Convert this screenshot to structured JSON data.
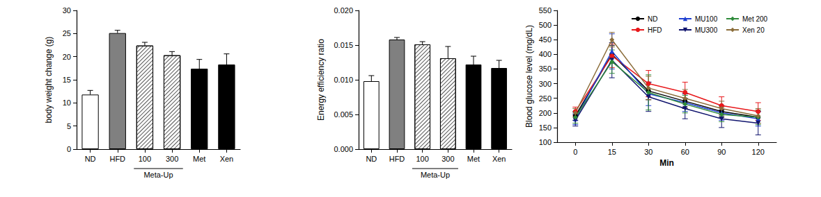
{
  "chart_data": [
    {
      "type": "bar",
      "y_label": "body weight change (g)",
      "categories": [
        "ND",
        "HFD",
        "100",
        "300",
        "Met",
        "Xen"
      ],
      "values": [
        11.8,
        25.1,
        22.4,
        20.3,
        17.4,
        18.3
      ],
      "errors": [
        0.9,
        0.6,
        0.7,
        0.8,
        2.0,
        2.3
      ],
      "colors": [
        "#ffffff",
        "#808080",
        "#ffffff",
        "#ffffff",
        "#000000",
        "#000000"
      ],
      "ylim": [
        0,
        30
      ],
      "yticks": [
        0,
        5,
        10,
        15,
        20,
        25,
        30
      ],
      "grid": false,
      "annotations": [
        {
          "text": "Meta-Up",
          "categories": [
            "100",
            "300"
          ]
        }
      ]
    },
    {
      "type": "bar",
      "y_label": "Energy efficiency ratio",
      "categories": [
        "ND",
        "HFD",
        "100",
        "300",
        "Met",
        "Xen"
      ],
      "values": [
        0.0098,
        0.0158,
        0.0151,
        0.0131,
        0.0122,
        0.0117
      ],
      "errors": [
        0.0008,
        0.0003,
        0.0004,
        0.0017,
        0.0012,
        0.0011
      ],
      "colors": [
        "#ffffff",
        "#808080",
        "#ffffff",
        "#ffffff",
        "#000000",
        "#000000"
      ],
      "ylim": [
        0,
        0.02
      ],
      "yticks": [
        {
          "value": 0,
          "label": "0.000"
        },
        {
          "value": 0.005,
          "label": "0.005"
        },
        {
          "value": 0.01,
          "label": "0.010"
        },
        {
          "value": 0.015,
          "label": "0.015"
        },
        {
          "value": 0.02,
          "label": "0.020"
        }
      ],
      "grid": false,
      "annotations": [
        {
          "text": "Meta-Up",
          "categories": [
            "100",
            "300"
          ]
        }
      ]
    },
    {
      "type": "line",
      "x_label": "Min",
      "y_label": "Blood glucose level (mg/dL)",
      "categories": [
        "0",
        "15",
        "30",
        "60",
        "90",
        "120"
      ],
      "ylim": [
        100,
        550
      ],
      "yticks": [
        100,
        150,
        200,
        250,
        300,
        350,
        400,
        450,
        500,
        550
      ],
      "grid": false,
      "legend": "upper right",
      "series": [
        {
          "name": "ND",
          "color": "#000000",
          "marker": "circle",
          "values": [
            190,
            400,
            275,
            240,
            205,
            185
          ],
          "errors": [
            15,
            30,
            30,
            25,
            20,
            20
          ]
        },
        {
          "name": "HFD",
          "color": "#e8191c",
          "marker": "circle",
          "values": [
            205,
            395,
            300,
            270,
            225,
            205
          ],
          "errors": [
            15,
            40,
            45,
            35,
            30,
            30
          ]
        },
        {
          "name": "MU100",
          "color": "#1f3fd1",
          "marker": "triangle",
          "values": [
            180,
            410,
            265,
            235,
            200,
            180
          ],
          "errors": [
            20,
            60,
            40,
            30,
            25,
            25
          ]
        },
        {
          "name": "MU300",
          "color": "#10146e",
          "marker": "triangle-down",
          "values": [
            175,
            380,
            255,
            215,
            180,
            165
          ],
          "errors": [
            20,
            60,
            50,
            35,
            30,
            40
          ]
        },
        {
          "name": "Met 200",
          "color": "#2e8b3a",
          "marker": "diamond",
          "values": [
            185,
            375,
            270,
            230,
            195,
            185
          ],
          "errors": [
            20,
            40,
            60,
            30,
            25,
            25
          ]
        },
        {
          "name": "Xen 20",
          "color": "#8b6d3a",
          "marker": "diamond",
          "values": [
            200,
            450,
            285,
            250,
            215,
            190
          ],
          "errors": [
            15,
            25,
            40,
            30,
            25,
            25
          ]
        }
      ]
    }
  ]
}
